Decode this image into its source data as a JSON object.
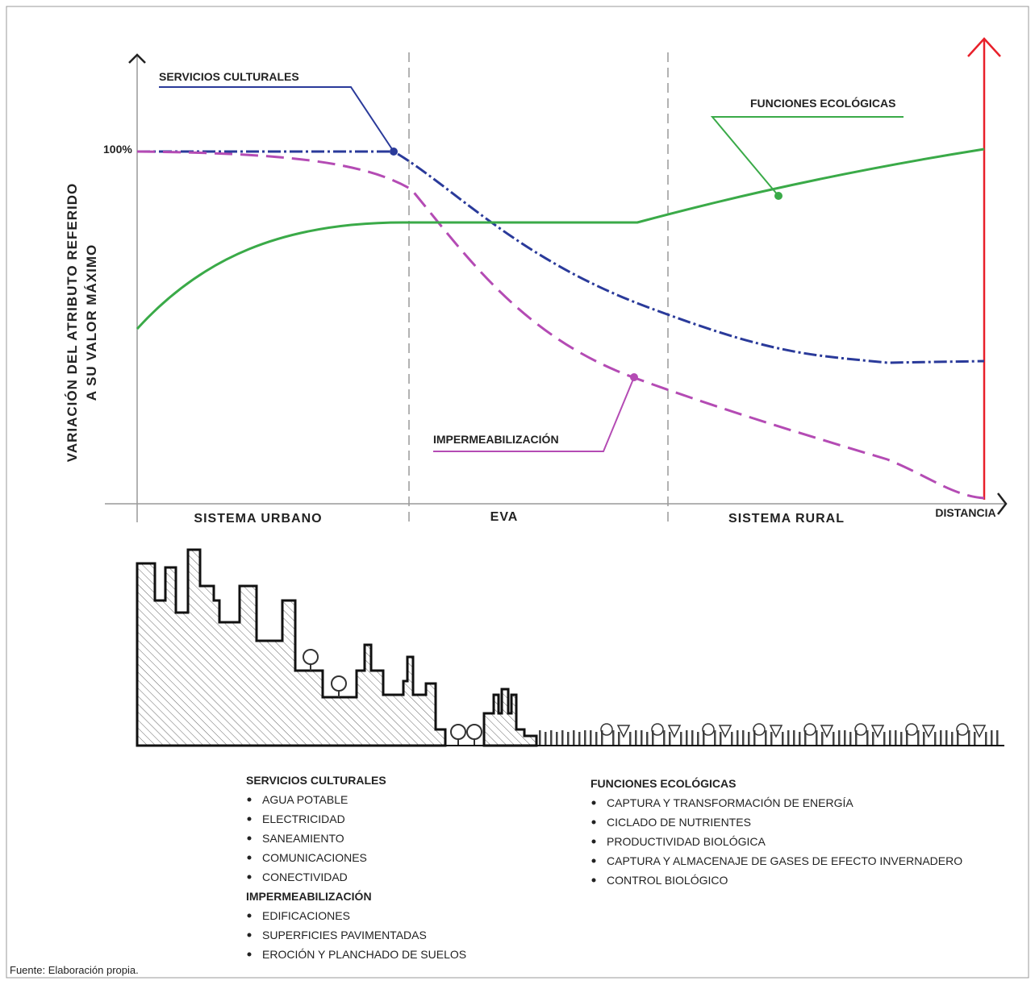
{
  "axis": {
    "y_label_lines": [
      "VARIACIÓN DEL ATRIBUTO REFERIDO",
      "A SU VALOR MÁXIMO"
    ],
    "y_max_label": "100%",
    "x_label": "DISTANCIA"
  },
  "zones": [
    "SISTEMA URBANO",
    "EVA",
    "SISTEMA RURAL"
  ],
  "curve_labels": {
    "cultural": "SERVICIOS CULTURALES",
    "ecological": "FUNCIONES ECOLÓGICAS",
    "impermeabilization": "IMPERMEABILIZACIÓN"
  },
  "legend": {
    "groups": [
      {
        "title": "SERVICIOS CULTURALES",
        "items": [
          "AGUA POTABLE",
          "ELECTRICIDAD",
          "SANEAMIENTO",
          "COMUNICACIONES",
          "CONECTIVIDAD"
        ]
      },
      {
        "title": "IMPERMEABILIZACIÓN",
        "items": [
          "EDIFICACIONES",
          "SUPERFICIES PAVIMENTADAS",
          "EROCIÓN Y PLANCHADO DE SUELOS"
        ]
      },
      {
        "title": "FUNCIONES ECOLÓGICAS",
        "items": [
          "CAPTURA Y TRANSFORMACIÓN DE ENERGÍA",
          "CICLADO DE NUTRIENTES",
          "PRODUCTIVIDAD BIOLÓGICA",
          "CAPTURA Y ALMACENAJE DE GASES DE EFECTO INVERNADERO",
          "CONTROL BIOLÓGICO"
        ]
      }
    ]
  },
  "source": "Fuente: Elaboración propia."
}
